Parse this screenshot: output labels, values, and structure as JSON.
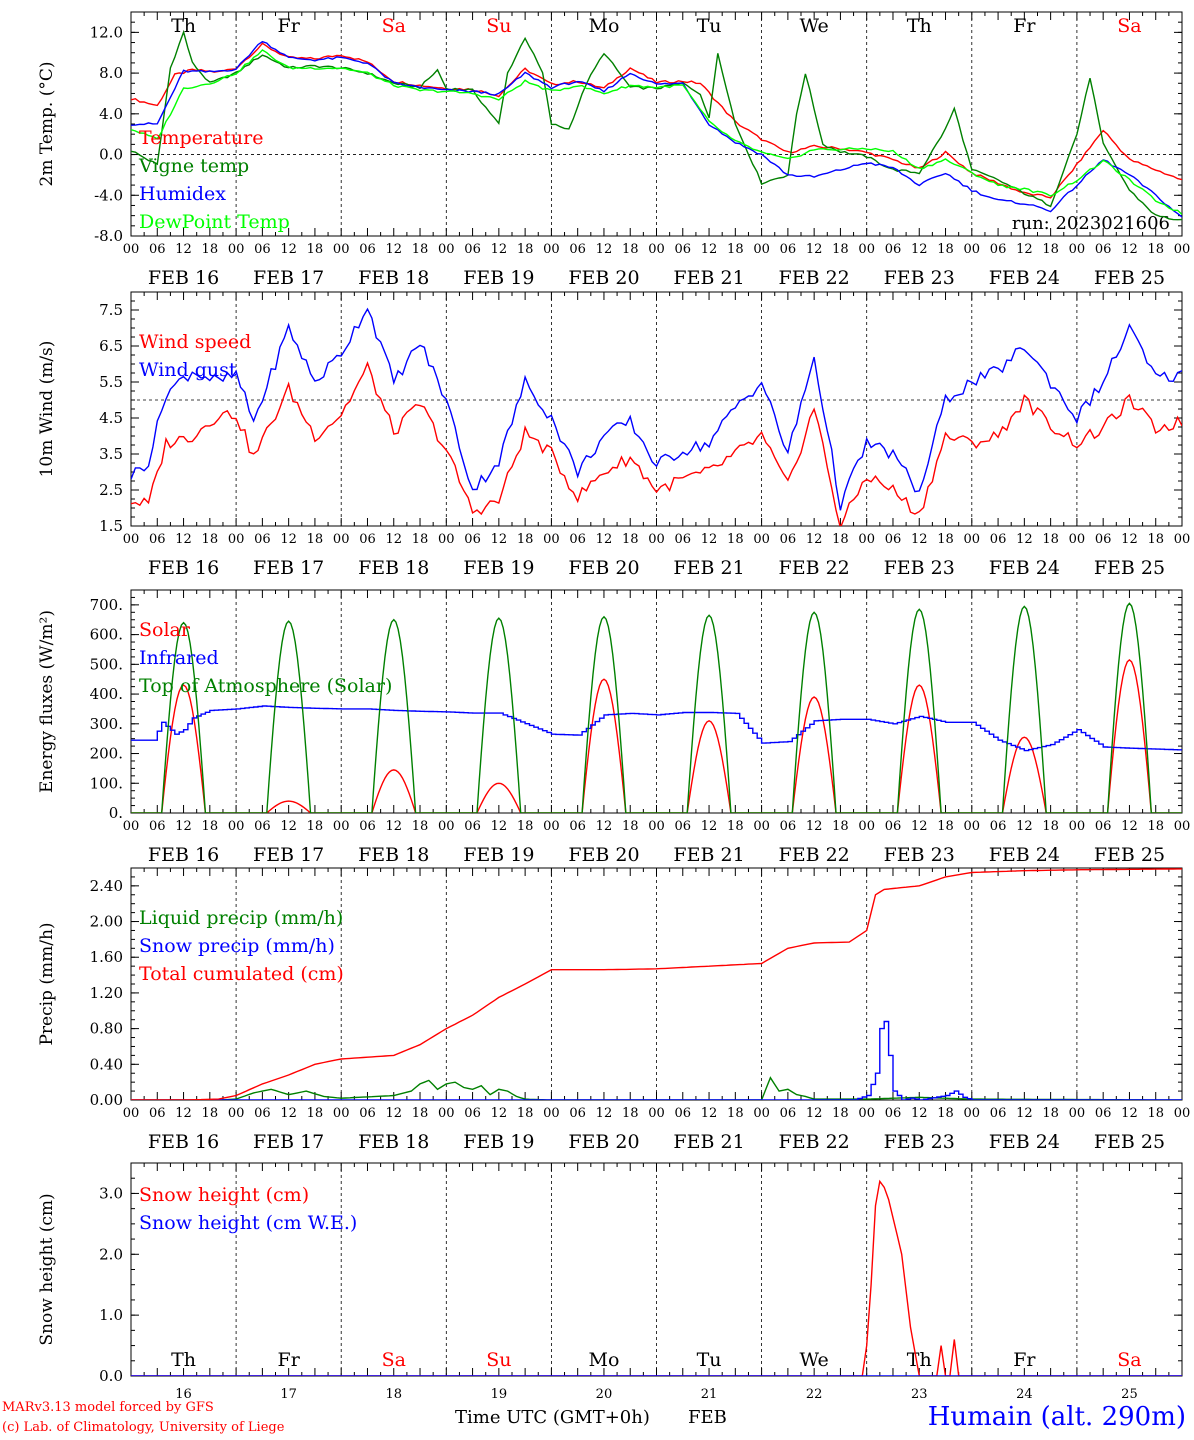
{
  "colors": {
    "red": "#ff0000",
    "dark_green": "#008000",
    "blue": "#0000ff",
    "light_green": "#00ff00",
    "black": "#000000"
  },
  "days": {
    "dow_top": [
      "Th",
      "Fr",
      "Sa",
      "Su",
      "Mo",
      "Tu",
      "We",
      "Th",
      "Fr",
      "Sa"
    ],
    "dow_weekend": [
      false,
      false,
      true,
      true,
      false,
      false,
      false,
      false,
      false,
      true
    ],
    "dates": [
      "FEB 16",
      "FEB 17",
      "FEB 18",
      "FEB 19",
      "FEB 20",
      "FEB 21",
      "FEB 22",
      "FEB 23",
      "FEB 24",
      "FEB 25"
    ],
    "day_numbers": [
      "16",
      "17",
      "18",
      "19",
      "20",
      "21",
      "22",
      "23",
      "24",
      "25"
    ],
    "hour_ticks": [
      "00",
      "06",
      "12",
      "18"
    ],
    "final_tick": "00"
  },
  "footer": {
    "model": "MARv3.13 model forced by GFS",
    "lab": "(c) Lab. of Climatology, University of Liege",
    "xlabel": "Time UTC (GMT+0h)",
    "month": "FEB",
    "station": "Humain (alt. 290m)"
  },
  "chart_data": [
    {
      "type": "line",
      "ylabel": "2m Temp. (°C)",
      "ylim": [
        -8,
        14
      ],
      "yticks": [
        "12.0",
        "8.0",
        "4.0",
        "0.0",
        "-4.0",
        "-8.0"
      ],
      "ytick_values": [
        12,
        8,
        4,
        0,
        -4,
        -8
      ],
      "reference_line": 0,
      "run_label": "run: 2023021606",
      "x_unit": "hours since 2023-02-16 00 UTC",
      "series": [
        {
          "name": "Temperature",
          "color": "#ff0000",
          "x": [
            0,
            6,
            10,
            14,
            20,
            24,
            30,
            36,
            42,
            48,
            54,
            60,
            66,
            72,
            78,
            84,
            90,
            96,
            102,
            108,
            114,
            120,
            126,
            130,
            138,
            144,
            150,
            156,
            162,
            168,
            174,
            180,
            186,
            192,
            198,
            204,
            210,
            216,
            222,
            228,
            234,
            240
          ],
          "y": [
            5.5,
            4.8,
            7.8,
            8.3,
            8.1,
            8.5,
            10.8,
            9.5,
            9.4,
            9.8,
            9.1,
            7.2,
            6.8,
            6.5,
            6.4,
            5.8,
            8.4,
            6.9,
            7.2,
            6.5,
            8.5,
            7.1,
            7.2,
            7.0,
            3.2,
            1.5,
            0.2,
            0.8,
            0.6,
            0.2,
            -0.5,
            -1.4,
            0.2,
            -1.8,
            -2.8,
            -3.8,
            -4.2,
            -1.0,
            2.4,
            -0.5,
            -1.5,
            -2.5
          ]
        },
        {
          "name": "Vigne temp",
          "color": "#008000",
          "x": [
            0,
            6,
            9,
            12,
            14,
            18,
            24,
            30,
            36,
            42,
            48,
            54,
            60,
            66,
            70,
            72,
            78,
            84,
            86,
            90,
            94,
            96,
            100,
            104,
            108,
            114,
            120,
            126,
            130,
            132,
            134,
            138,
            144,
            150,
            152,
            154,
            158,
            162,
            168,
            174,
            180,
            186,
            188,
            192,
            198,
            204,
            210,
            216,
            219,
            222,
            228,
            234,
            240
          ],
          "y": [
            0.4,
            -1.0,
            8.5,
            12.0,
            9.0,
            7.0,
            8.0,
            9.8,
            8.5,
            8.7,
            8.5,
            8.0,
            7.0,
            6.6,
            8.3,
            6.5,
            6.3,
            3.0,
            8.0,
            11.5,
            8.0,
            3.0,
            2.5,
            7.0,
            10.0,
            6.6,
            6.5,
            7.0,
            6.0,
            3.5,
            10.0,
            3.0,
            -2.8,
            -2.0,
            4.0,
            8.0,
            1.0,
            0.3,
            -0.2,
            -1.5,
            -1.8,
            2.5,
            4.5,
            -1.5,
            -2.5,
            -3.8,
            -5.0,
            2.0,
            7.6,
            1.0,
            -3.5,
            -6.0,
            -6.5
          ]
        },
        {
          "name": "Humidex",
          "color": "#0000ff",
          "x": [
            0,
            6,
            12,
            18,
            24,
            30,
            36,
            42,
            48,
            54,
            60,
            66,
            72,
            78,
            84,
            90,
            96,
            102,
            108,
            114,
            120,
            126,
            132,
            138,
            144,
            150,
            156,
            162,
            168,
            174,
            180,
            186,
            192,
            198,
            204,
            210,
            216,
            222,
            228,
            234,
            240
          ],
          "y": [
            3.0,
            3.0,
            8.2,
            8.1,
            8.4,
            11.2,
            9.5,
            9.3,
            9.5,
            9.0,
            7.0,
            6.6,
            6.3,
            6.2,
            5.9,
            8.0,
            6.6,
            7.2,
            6.2,
            8.0,
            6.9,
            7.0,
            3.0,
            1.2,
            0.0,
            -2.0,
            -2.2,
            -1.5,
            -0.8,
            -1.3,
            -3.0,
            -1.8,
            -3.5,
            -4.5,
            -4.8,
            -5.5,
            -3.0,
            -0.5,
            -2.0,
            -4.0,
            -6.2
          ]
        },
        {
          "name": "DewPoint Temp",
          "color": "#00ff00",
          "x": [
            0,
            6,
            12,
            18,
            24,
            30,
            36,
            42,
            48,
            54,
            60,
            66,
            72,
            78,
            84,
            90,
            96,
            102,
            108,
            114,
            120,
            126,
            132,
            138,
            144,
            150,
            156,
            162,
            168,
            174,
            180,
            186,
            192,
            198,
            204,
            210,
            216,
            222,
            228,
            234,
            240
          ],
          "y": [
            2.5,
            1.5,
            6.5,
            7.0,
            8.0,
            10.2,
            8.5,
            8.5,
            8.5,
            8.0,
            6.8,
            6.3,
            6.2,
            6.0,
            5.4,
            7.2,
            6.2,
            6.8,
            6.0,
            6.8,
            6.6,
            6.8,
            3.2,
            1.3,
            0.2,
            -0.5,
            0.5,
            0.5,
            0.6,
            0.3,
            -1.4,
            -0.5,
            -1.8,
            -3.0,
            -3.4,
            -4.0,
            -2.5,
            -0.6,
            -2.5,
            -4.5,
            -5.8
          ]
        }
      ]
    },
    {
      "type": "line",
      "ylabel": "10m Wind (m/s)",
      "ylim": [
        1.5,
        8.0
      ],
      "yticks": [
        "7.5",
        "6.5",
        "5.5",
        "4.5",
        "3.5",
        "2.5",
        "1.5"
      ],
      "ytick_values": [
        7.5,
        6.5,
        5.5,
        4.5,
        3.5,
        2.5,
        1.5
      ],
      "reference_line": 5,
      "x_unit": "hours since 2023-02-16 00 UTC",
      "series": [
        {
          "name": "Wind speed",
          "color": "#ff0000",
          "x": [
            0,
            4,
            8,
            14,
            20,
            24,
            28,
            36,
            42,
            48,
            54,
            60,
            66,
            72,
            78,
            84,
            90,
            96,
            102,
            108,
            114,
            120,
            126,
            132,
            138,
            144,
            150,
            156,
            162,
            168,
            174,
            180,
            186,
            192,
            198,
            204,
            210,
            216,
            222,
            228,
            234,
            240
          ],
          "y": [
            2.2,
            2.1,
            3.8,
            4.0,
            4.6,
            4.6,
            3.4,
            5.3,
            4.0,
            4.6,
            5.9,
            4.1,
            4.9,
            3.6,
            1.9,
            2.2,
            4.1,
            3.5,
            2.3,
            3.0,
            3.4,
            2.5,
            2.8,
            3.0,
            3.5,
            4.0,
            2.6,
            4.8,
            1.5,
            2.9,
            2.5,
            1.8,
            4.0,
            3.8,
            4.0,
            5.0,
            4.3,
            3.8,
            4.2,
            5.0,
            4.2,
            4.4
          ]
        },
        {
          "name": "Wind gust",
          "color": "#0000ff",
          "x": [
            0,
            4,
            8,
            14,
            20,
            24,
            28,
            36,
            42,
            48,
            54,
            60,
            66,
            72,
            78,
            84,
            90,
            96,
            102,
            108,
            114,
            120,
            126,
            132,
            138,
            144,
            150,
            156,
            162,
            168,
            174,
            180,
            186,
            192,
            198,
            204,
            210,
            216,
            222,
            228,
            234,
            240
          ],
          "y": [
            2.9,
            3.3,
            5.2,
            5.8,
            5.5,
            5.7,
            4.4,
            7.0,
            5.5,
            6.3,
            7.6,
            5.5,
            6.6,
            5.0,
            2.5,
            3.3,
            5.5,
            4.5,
            3.0,
            4.0,
            4.4,
            3.2,
            3.6,
            3.8,
            4.8,
            5.5,
            3.5,
            6.2,
            2.1,
            3.8,
            3.5,
            2.4,
            5.0,
            5.5,
            5.8,
            6.5,
            5.5,
            4.5,
            5.5,
            7.0,
            5.6,
            5.7
          ]
        }
      ]
    },
    {
      "type": "line",
      "ylabel": "Energy fluxes (W/m²)",
      "ylim": [
        0,
        750
      ],
      "yticks": [
        "700.",
        "600.",
        "500.",
        "400.",
        "300.",
        "200.",
        "100.",
        "0."
      ],
      "ytick_values": [
        700,
        600,
        500,
        400,
        300,
        200,
        100,
        0
      ],
      "x_unit": "hours since 2023-02-16 00 UTC",
      "series": [
        {
          "name": "Solar",
          "color": "#ff0000",
          "peak_hour": 12,
          "peaks": [
            430,
            40,
            145,
            100,
            450,
            310,
            390,
            430,
            255,
            515
          ]
        },
        {
          "name": "Infrared",
          "color": "#0000ff",
          "x": [
            0,
            5,
            7,
            10,
            12,
            14,
            18,
            24,
            30,
            36,
            42,
            48,
            54,
            60,
            66,
            72,
            78,
            84,
            96,
            102,
            108,
            114,
            120,
            126,
            132,
            138,
            144,
            150,
            156,
            162,
            168,
            174,
            180,
            186,
            192,
            198,
            204,
            210,
            216,
            222,
            228,
            234,
            240
          ],
          "y": [
            245,
            245,
            305,
            265,
            280,
            320,
            345,
            350,
            360,
            355,
            352,
            350,
            350,
            345,
            342,
            340,
            336,
            336,
            265,
            262,
            330,
            335,
            330,
            338,
            338,
            335,
            235,
            240,
            310,
            315,
            315,
            300,
            325,
            305,
            305,
            245,
            210,
            230,
            280,
            222,
            218,
            215,
            212
          ]
        },
        {
          "name": "Top of Atmosphere (Solar)",
          "color": "#008000",
          "peak_hour": 12,
          "peaks": [
            640,
            645,
            650,
            655,
            660,
            665,
            675,
            685,
            695,
            705
          ]
        }
      ]
    },
    {
      "type": "line",
      "ylabel": "Precip (mm/h)",
      "ylim": [
        0,
        2.6
      ],
      "yticks": [
        "2.40",
        "2.00",
        "1.60",
        "1.20",
        "0.80",
        "0.40",
        "0.00"
      ],
      "ytick_values": [
        2.4,
        2.0,
        1.6,
        1.2,
        0.8,
        0.4,
        0.0
      ],
      "x_unit": "hours since 2023-02-16 00 UTC",
      "series": [
        {
          "name": "Liquid precip (mm/h)",
          "color": "#008000",
          "x": [
            0,
            20,
            24,
            28,
            32,
            36,
            40,
            44,
            48,
            60,
            64,
            66,
            68,
            70,
            72,
            74,
            76,
            78,
            80,
            82,
            84,
            86,
            88,
            90,
            96,
            120,
            144,
            146,
            148,
            150,
            152,
            154,
            156,
            168,
            180,
            192,
            240
          ],
          "y": [
            0,
            0,
            0.01,
            0.08,
            0.12,
            0.06,
            0.1,
            0.04,
            0.02,
            0.05,
            0.1,
            0.18,
            0.22,
            0.12,
            0.18,
            0.2,
            0.14,
            0.12,
            0.16,
            0.06,
            0.12,
            0.1,
            0.04,
            0.01,
            0,
            0,
            0,
            0.25,
            0.1,
            0.12,
            0.06,
            0.04,
            0.01,
            0.01,
            0.03,
            0.01,
            0
          ]
        },
        {
          "name": "Snow precip (mm/h)",
          "color": "#0000ff",
          "x": [
            0,
            165,
            168,
            170,
            171,
            172,
            173,
            174,
            176,
            178,
            180,
            186,
            188,
            190,
            192,
            240
          ],
          "y": [
            0,
            0,
            0.05,
            0.3,
            0.8,
            0.88,
            0.5,
            0.1,
            0,
            0.02,
            0,
            0.05,
            0.1,
            0.03,
            0,
            0
          ]
        },
        {
          "name": "Total cumulated (cm)",
          "color": "#ff0000",
          "x": [
            0,
            12,
            20,
            24,
            30,
            36,
            42,
            48,
            54,
            60,
            66,
            72,
            78,
            84,
            90,
            96,
            108,
            120,
            132,
            144,
            150,
            156,
            164,
            168,
            170,
            172,
            180,
            186,
            192,
            204,
            216,
            240
          ],
          "y": [
            0,
            0,
            0.01,
            0.05,
            0.18,
            0.28,
            0.4,
            0.46,
            0.48,
            0.5,
            0.62,
            0.8,
            0.95,
            1.15,
            1.3,
            1.46,
            1.46,
            1.47,
            1.5,
            1.53,
            1.7,
            1.76,
            1.77,
            1.9,
            2.3,
            2.36,
            2.4,
            2.5,
            2.55,
            2.57,
            2.58,
            2.59
          ]
        }
      ]
    },
    {
      "type": "line",
      "ylabel": "Snow height (cm)",
      "ylim": [
        0,
        3.5
      ],
      "yticks": [
        "3.0",
        "2.0",
        "1.0",
        "0.0"
      ],
      "ytick_values": [
        3.0,
        2.0,
        1.0,
        0.0
      ],
      "x_unit": "hours since 2023-02-16 00 UTC",
      "series": [
        {
          "name": "Snow height (cm)",
          "color": "#ff0000",
          "x": [
            0,
            165,
            165.5,
            166,
            166.5,
            167,
            168,
            169,
            170,
            171,
            171.5,
            172,
            173,
            174,
            176,
            178,
            180,
            184,
            185,
            185.5,
            186,
            187,
            188,
            188.5,
            189,
            190,
            240
          ],
          "y": [
            0,
            0,
            0.6,
            0,
            0.6,
            0,
            0.5,
            1.5,
            2.8,
            3.2,
            3.0,
            3.1,
            2.9,
            2.6,
            2.0,
            0.8,
            0,
            0,
            0.5,
            0,
            0,
            0,
            0.6,
            0,
            0,
            0,
            0
          ]
        },
        {
          "name": "Snow height (cm W.E.)",
          "color": "#0000ff",
          "x": [
            0,
            240
          ],
          "y": [
            0,
            0
          ]
        }
      ]
    }
  ]
}
